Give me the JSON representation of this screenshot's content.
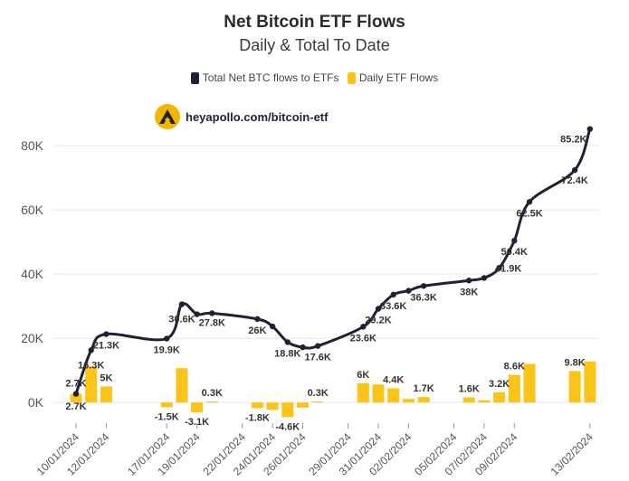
{
  "chart_data": {
    "type": "line+bar",
    "title": "Net Bitcoin ETF Flows",
    "subtitle": "Daily & Total To Date",
    "legend": [
      {
        "name": "Total Net BTC flows to ETFs",
        "color": "#1f2235"
      },
      {
        "name": "Daily ETF Flows",
        "color": "#fcc419"
      }
    ],
    "y_ticks": [
      "0K",
      "20K",
      "40K",
      "60K",
      "80K"
    ],
    "ylim": [
      -7000,
      93000
    ],
    "x_ticks": [
      "10/01/2024",
      "12/01/2024",
      "17/01/2024",
      "19/01/2024",
      "22/01/2024",
      "24/01/2024",
      "26/01/2024",
      "29/01/2024",
      "31/01/2024",
      "02/02/2024",
      "05/02/2024",
      "07/02/2024",
      "09/02/2024",
      "13/02/2024"
    ],
    "total_series": [
      {
        "x": 0,
        "y": 2700,
        "label": "2.7K",
        "marker": true
      },
      {
        "x": 1,
        "y": 16300,
        "label": "16.3K",
        "marker": true
      },
      {
        "x": 2,
        "y": 21300,
        "label": "21.3K",
        "marker": true
      },
      {
        "x": 6,
        "y": 19900,
        "label": "19.9K",
        "marker": true
      },
      {
        "x": 7,
        "y": 30600,
        "label": "30.6K",
        "marker": true
      },
      {
        "x": 8,
        "y": 27500,
        "label": "",
        "marker": true
      },
      {
        "x": 9,
        "y": 27800,
        "label": "27.8K",
        "marker": true
      },
      {
        "x": 12,
        "y": 26000,
        "label": "26K",
        "marker": true
      },
      {
        "x": 13,
        "y": 23700,
        "label": "",
        "marker": true
      },
      {
        "x": 14,
        "y": 18800,
        "label": "18.8K",
        "marker": true
      },
      {
        "x": 15,
        "y": 17200,
        "label": "",
        "marker": true
      },
      {
        "x": 16,
        "y": 17600,
        "label": "17.6K",
        "marker": true
      },
      {
        "x": 19,
        "y": 23600,
        "label": "23.6K",
        "marker": true
      },
      {
        "x": 20,
        "y": 29200,
        "label": "29.2K",
        "marker": true
      },
      {
        "x": 21,
        "y": 33600,
        "label": "33.6K",
        "marker": true
      },
      {
        "x": 22,
        "y": 34800,
        "label": "",
        "marker": true
      },
      {
        "x": 23,
        "y": 36300,
        "label": "36.3K",
        "marker": true
      },
      {
        "x": 26,
        "y": 38000,
        "label": "38K",
        "marker": true
      },
      {
        "x": 27,
        "y": 38800,
        "label": "",
        "marker": true
      },
      {
        "x": 28,
        "y": 41900,
        "label": "41.9K",
        "marker": true
      },
      {
        "x": 29,
        "y": 50400,
        "label": "50.4K",
        "marker": true
      },
      {
        "x": 30,
        "y": 62500,
        "label": "62.5K",
        "marker": true
      },
      {
        "x": 33,
        "y": 72400,
        "label": "72.4K",
        "marker": true
      },
      {
        "x": 34,
        "y": 85200,
        "label": "85.2K",
        "marker": true
      }
    ],
    "daily_flows": [
      {
        "x": 0,
        "y": 2700,
        "label": "2.7K"
      },
      {
        "x": 1,
        "y": 11200,
        "label": ""
      },
      {
        "x": 2,
        "y": 5000,
        "label": "5K"
      },
      {
        "x": 6,
        "y": -1500,
        "label": "-1.5K"
      },
      {
        "x": 7,
        "y": 10700,
        "label": ""
      },
      {
        "x": 8,
        "y": -3100,
        "label": "-3.1K"
      },
      {
        "x": 9,
        "y": 300,
        "label": "0.3K"
      },
      {
        "x": 12,
        "y": -1800,
        "label": "-1.8K"
      },
      {
        "x": 13,
        "y": -2300,
        "label": ""
      },
      {
        "x": 14,
        "y": -4600,
        "label": "-4.6K"
      },
      {
        "x": 15,
        "y": -1600,
        "label": ""
      },
      {
        "x": 16,
        "y": 300,
        "label": "0.3K"
      },
      {
        "x": 19,
        "y": 6000,
        "label": "6K"
      },
      {
        "x": 20,
        "y": 5600,
        "label": ""
      },
      {
        "x": 21,
        "y": 4400,
        "label": "4.4K"
      },
      {
        "x": 22,
        "y": 1100,
        "label": ""
      },
      {
        "x": 23,
        "y": 1700,
        "label": "1.7K"
      },
      {
        "x": 26,
        "y": 1600,
        "label": "1.6K"
      },
      {
        "x": 27,
        "y": 700,
        "label": ""
      },
      {
        "x": 28,
        "y": 3200,
        "label": "3.2K"
      },
      {
        "x": 29,
        "y": 8600,
        "label": "8.6K"
      },
      {
        "x": 30,
        "y": 12000,
        "label": ""
      },
      {
        "x": 33,
        "y": 9800,
        "label": "9.8K"
      },
      {
        "x": 34,
        "y": 12800,
        "label": ""
      }
    ],
    "tick_positions": [
      0,
      2,
      6,
      8,
      11,
      13,
      15,
      18,
      20,
      22,
      25,
      27,
      29,
      34
    ],
    "watermark": "heyapollo.com/bitcoin-etf"
  }
}
